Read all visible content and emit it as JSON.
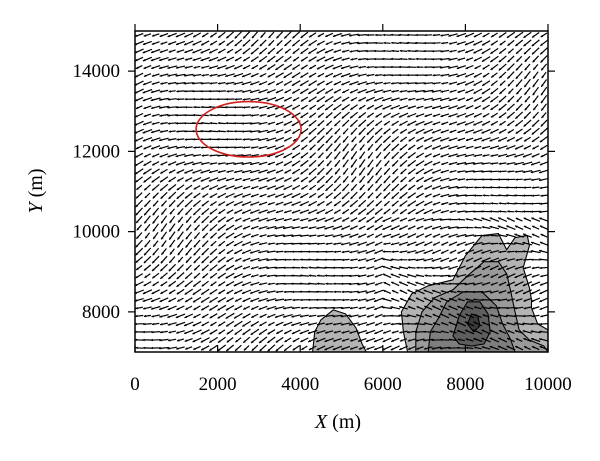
{
  "chart_data": {
    "type": "vector-field",
    "xlabel": {
      "var": "X",
      "unit": " (m)"
    },
    "ylabel": {
      "var": "Y",
      "unit": " (m)"
    },
    "xlim": [
      0,
      10000
    ],
    "ylim": [
      7000,
      15000
    ],
    "x_ticks": [
      0,
      2000,
      4000,
      6000,
      8000,
      10000
    ],
    "y_ticks": [
      8000,
      10000,
      12000,
      14000
    ],
    "x_tick_labels": [
      "0",
      "2000",
      "4000",
      "6000",
      "8000",
      "10000"
    ],
    "y_tick_labels": [
      "8000",
      "10000",
      "12000",
      "14000"
    ],
    "grid": false,
    "dominant_flow_direction": "toward lower-left",
    "vector_spacing_m": 200,
    "contour_fill_colors": [
      "#b4b4b4",
      "#9a9a9a",
      "#7e7e7e",
      "#5e5e5e",
      "#3a3a3a"
    ],
    "contours": [
      {
        "level": 1,
        "fill": "#b4b4b4",
        "points": [
          [
            4300,
            7000
          ],
          [
            4350,
            7500
          ],
          [
            4500,
            7800
          ],
          [
            4800,
            8050
          ],
          [
            5100,
            7950
          ],
          [
            5350,
            7600
          ],
          [
            5500,
            7200
          ],
          [
            5600,
            7000
          ]
        ]
      },
      {
        "level": 1,
        "fill": "#b4b4b4",
        "points": [
          [
            6600,
            7000
          ],
          [
            6500,
            7500
          ],
          [
            6450,
            8000
          ],
          [
            6700,
            8450
          ],
          [
            7100,
            8650
          ],
          [
            7700,
            8800
          ],
          [
            8000,
            9400
          ],
          [
            8400,
            9900
          ],
          [
            8800,
            9950
          ],
          [
            9000,
            9550
          ],
          [
            9200,
            9850
          ],
          [
            9500,
            9900
          ],
          [
            9550,
            9650
          ],
          [
            9400,
            9100
          ],
          [
            9550,
            8600
          ],
          [
            9600,
            8300
          ],
          [
            9600,
            8100
          ],
          [
            9750,
            7700
          ],
          [
            10000,
            7550
          ],
          [
            10000,
            7000
          ]
        ]
      },
      {
        "level": 2,
        "fill": "#9a9a9a",
        "points": [
          [
            6800,
            7000
          ],
          [
            6800,
            7500
          ],
          [
            6950,
            8000
          ],
          [
            7250,
            8350
          ],
          [
            7700,
            8550
          ],
          [
            8050,
            8900
          ],
          [
            8450,
            9250
          ],
          [
            8800,
            9250
          ],
          [
            9000,
            8950
          ],
          [
            9100,
            8500
          ],
          [
            9200,
            8000
          ],
          [
            9300,
            7550
          ],
          [
            9550,
            7300
          ],
          [
            9900,
            7150
          ],
          [
            10000,
            7000
          ]
        ]
      },
      {
        "level": 3,
        "fill": "#7e7e7e",
        "points": [
          [
            7100,
            7000
          ],
          [
            7150,
            7500
          ],
          [
            7350,
            7850
          ],
          [
            7550,
            8250
          ],
          [
            7950,
            8500
          ],
          [
            8400,
            8500
          ],
          [
            8750,
            8150
          ],
          [
            8900,
            7700
          ],
          [
            9100,
            7300
          ],
          [
            9200,
            7000
          ]
        ]
      },
      {
        "level": 4,
        "fill": "#5e5e5e",
        "points": [
          [
            7700,
            7400
          ],
          [
            7850,
            7900
          ],
          [
            8050,
            8250
          ],
          [
            8350,
            8250
          ],
          [
            8550,
            7950
          ],
          [
            8600,
            7500
          ],
          [
            8450,
            7200
          ],
          [
            8150,
            7150
          ],
          [
            7850,
            7200
          ]
        ]
      },
      {
        "level": 5,
        "fill": "#3a3a3a",
        "points": [
          [
            8050,
            7700
          ],
          [
            8150,
            7950
          ],
          [
            8300,
            7900
          ],
          [
            8350,
            7650
          ],
          [
            8200,
            7500
          ]
        ]
      }
    ],
    "annotation_ellipse": {
      "cx": 2750,
      "cy": 12550,
      "rx": 1270,
      "ry": 690,
      "color": "#d42020"
    }
  }
}
